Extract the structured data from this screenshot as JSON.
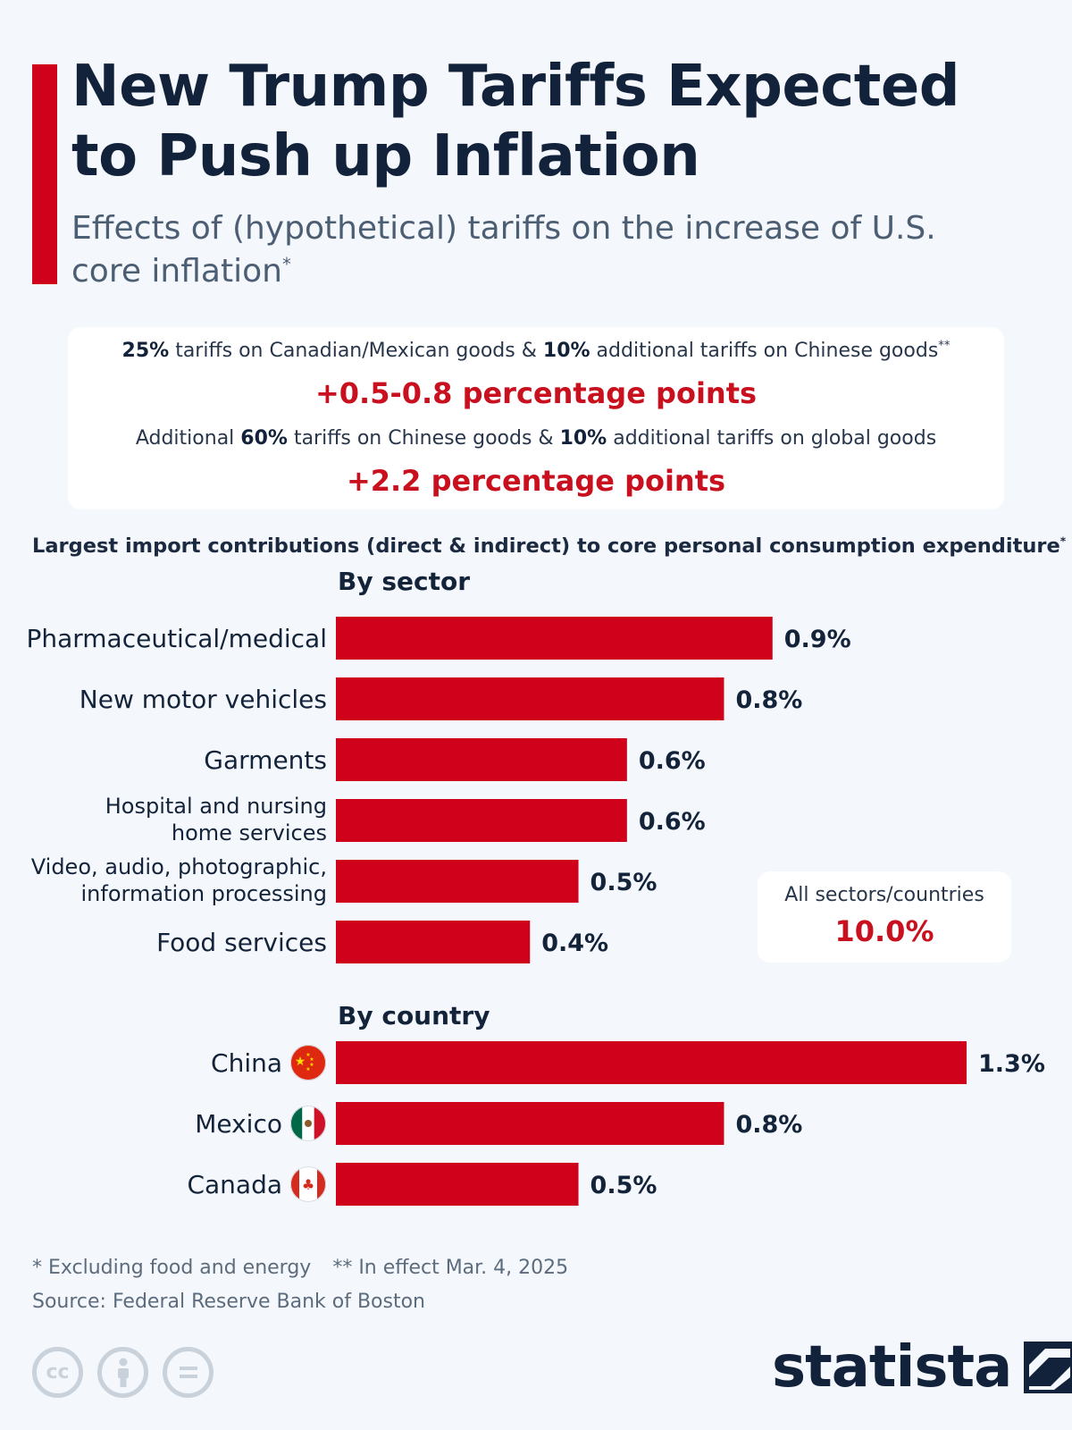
{
  "header": {
    "title": "New Trump Tariffs Expected to Push up Inflation",
    "subtitle": "Effects of (hypothetical) tariffs on the increase of U.S. core inflation",
    "subtitle_mark": "*"
  },
  "scenarios": [
    {
      "parts": [
        {
          "text": "25%",
          "bold": true
        },
        {
          "text": " tariffs on Canadian/Mexican goods & ",
          "bold": false
        },
        {
          "text": "10%",
          "bold": true
        },
        {
          "text": " additional tariffs on Chinese goods",
          "bold": false
        }
      ],
      "mark": "**",
      "value": "+0.5-0.8 percentage points"
    },
    {
      "parts": [
        {
          "text": "Additional ",
          "bold": false
        },
        {
          "text": "60%",
          "bold": true
        },
        {
          "text": " tariffs on Chinese goods & ",
          "bold": false
        },
        {
          "text": "10%",
          "bold": true
        },
        {
          "text": " additional tariffs on global goods",
          "bold": false
        }
      ],
      "mark": "",
      "value": "+2.2 percentage points"
    }
  ],
  "section": {
    "title": "Largest import contributions (direct & indirect) to core personal consumption expenditure",
    "mark": "*"
  },
  "total": {
    "label": "All sectors/countries",
    "value": "10.0%"
  },
  "chart_data": [
    {
      "type": "bar",
      "orientation": "horizontal",
      "title": "By sector",
      "categories": [
        [
          "Pharmaceutical/medical"
        ],
        [
          "New motor vehicles"
        ],
        [
          "Garments"
        ],
        [
          "Hospital and nursing",
          "home services"
        ],
        [
          "Video, audio, photographic,",
          "information processing"
        ],
        [
          "Food services"
        ]
      ],
      "values": [
        0.9,
        0.8,
        0.6,
        0.6,
        0.5,
        0.4
      ],
      "labels": [
        "0.9%",
        "0.8%",
        "0.6%",
        "0.6%",
        "0.5%",
        "0.4%"
      ],
      "unit": "%",
      "xlim": [
        0,
        1.3
      ],
      "color": "#d0021b"
    },
    {
      "type": "bar",
      "orientation": "horizontal",
      "title": "By country",
      "categories": [
        [
          "China"
        ],
        [
          "Mexico"
        ],
        [
          "Canada"
        ]
      ],
      "flags": [
        "china-flag-icon",
        "mexico-flag-icon",
        "canada-flag-icon"
      ],
      "values": [
        1.3,
        0.8,
        0.5
      ],
      "labels": [
        "1.3%",
        "0.8%",
        "0.5%"
      ],
      "unit": "%",
      "xlim": [
        0,
        1.3
      ],
      "color": "#d0021b"
    }
  ],
  "footer": {
    "note1": "* Excluding food and energy",
    "note2": "** In effect Mar. 4, 2025",
    "source": "Source: Federal Reserve Bank of Boston",
    "cc_icons": [
      "cc-icon",
      "attribution-icon",
      "no-derivatives-icon"
    ],
    "logo_text": "statista"
  },
  "colors": {
    "accent": "#d0021b",
    "value_text": "#c8101e",
    "heading": "#12223a",
    "background": "#f4f7fb"
  }
}
